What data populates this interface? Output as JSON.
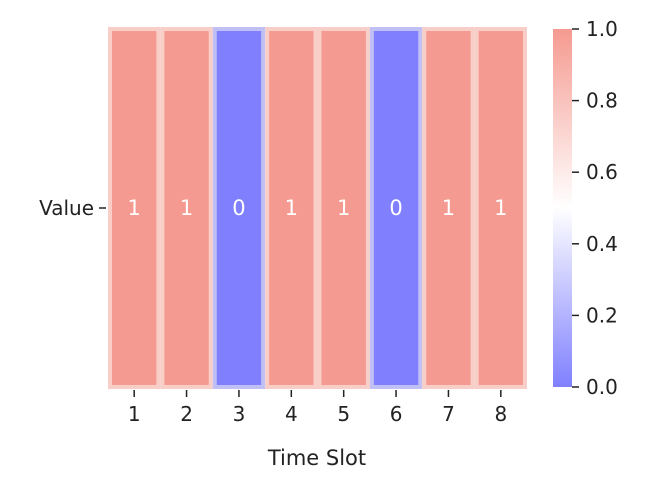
{
  "chart_data": {
    "type": "heatmap",
    "title": "",
    "xlabel": "Time Slot",
    "ylabel": "",
    "row_labels": [
      "Value"
    ],
    "categories": [
      "1",
      "2",
      "3",
      "4",
      "5",
      "6",
      "7",
      "8"
    ],
    "values": [
      [
        1,
        1,
        0,
        1,
        1,
        0,
        1,
        1
      ]
    ],
    "cell_labels": [
      "1",
      "1",
      "0",
      "1",
      "1",
      "0",
      "1",
      "1"
    ],
    "colorbar": {
      "range": [
        0.0,
        1.0
      ],
      "ticks": [
        "0.0",
        "0.2",
        "0.4",
        "0.6",
        "0.8",
        "1.0"
      ],
      "colormap": "bwr",
      "alpha": 0.5
    },
    "colors": {
      "low": "#8080ff",
      "high": "#f59a90",
      "cell_border": "#f7cfc8",
      "low_border": "#c0c0f5"
    }
  }
}
